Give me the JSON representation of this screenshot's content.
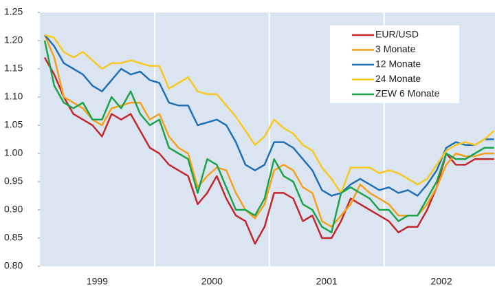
{
  "chart_data": {
    "type": "line",
    "x": [
      0.5,
      1.5,
      2.5,
      3.5,
      4.5,
      5.5,
      6.5,
      7.5,
      8.5,
      9.5,
      10.5,
      11.5,
      12.5,
      13.5,
      14.5,
      15.5,
      16.5,
      17.5,
      18.5,
      19.5,
      20.5,
      21.5,
      22.5,
      23.5,
      24.5,
      25.5,
      26.5,
      27.5,
      28.5,
      29.5,
      30.5,
      31.5,
      32.5,
      33.5,
      34.5,
      35.5,
      36.5,
      37.5,
      38.5,
      39.5,
      40.5,
      41.5,
      42.5,
      43.5,
      44.5,
      45.5,
      46.5,
      47.5
    ],
    "xlim": [
      0,
      47.6
    ],
    "xticks": [
      {
        "value": 6,
        "label": "1999"
      },
      {
        "value": 18,
        "label": "2000"
      },
      {
        "value": 30,
        "label": "2001"
      },
      {
        "value": 42,
        "label": "2002"
      }
    ],
    "x_gridlines": [
      12,
      24,
      36
    ],
    "ylim": [
      0.8,
      1.25
    ],
    "yticks": [
      {
        "value": 0.8,
        "label": "0.80"
      },
      0.85,
      {
        "value": 0.9,
        "label": "0.90"
      },
      0.95,
      {
        "value": 1.0,
        "label": "1.00"
      },
      1.05,
      {
        "value": 1.1,
        "label": "1.10"
      },
      1.15,
      {
        "value": 1.2,
        "label": "1.20"
      },
      1.25
    ],
    "legend": "top-right",
    "series": [
      {
        "name": "EUR/USD",
        "color": "#c1272d",
        "values": [
          1.17,
          1.14,
          1.1,
          1.07,
          1.06,
          1.05,
          1.03,
          1.07,
          1.06,
          1.07,
          1.04,
          1.01,
          1.0,
          0.98,
          0.97,
          0.96,
          0.91,
          0.93,
          0.96,
          0.92,
          0.89,
          0.88,
          0.84,
          0.87,
          0.93,
          0.93,
          0.92,
          0.88,
          0.89,
          0.85,
          0.85,
          0.88,
          0.92,
          0.91,
          0.9,
          0.89,
          0.88,
          0.86,
          0.87,
          0.87,
          0.9,
          0.94,
          1.0,
          0.98,
          0.98,
          0.99,
          0.99,
          0.99
        ]
      },
      {
        "name": "3 Monate",
        "color": "#f5a01a",
        "values": [
          1.21,
          1.17,
          1.1,
          1.09,
          1.08,
          1.06,
          1.05,
          1.08,
          1.085,
          1.09,
          1.09,
          1.06,
          1.07,
          1.03,
          1.01,
          1.0,
          0.94,
          0.96,
          0.975,
          0.97,
          0.93,
          0.9,
          0.885,
          0.91,
          0.97,
          0.98,
          0.97,
          0.94,
          0.93,
          0.88,
          0.87,
          0.89,
          0.91,
          0.945,
          0.93,
          0.92,
          0.91,
          0.89,
          0.89,
          0.89,
          0.91,
          0.94,
          0.98,
          1.0,
          0.995,
          0.995,
          1.0,
          1.0
        ]
      },
      {
        "name": "12 Monate",
        "color": "#1f6fb5",
        "values": [
          1.21,
          1.19,
          1.16,
          1.15,
          1.14,
          1.12,
          1.11,
          1.13,
          1.15,
          1.14,
          1.145,
          1.13,
          1.125,
          1.09,
          1.085,
          1.085,
          1.05,
          1.055,
          1.06,
          1.05,
          1.02,
          0.98,
          0.97,
          0.98,
          1.02,
          1.02,
          1.01,
          0.99,
          0.97,
          0.935,
          0.925,
          0.93,
          0.945,
          0.955,
          0.945,
          0.935,
          0.94,
          0.93,
          0.935,
          0.925,
          0.945,
          0.97,
          1.01,
          1.02,
          1.015,
          1.015,
          1.025,
          1.025
        ]
      },
      {
        "name": "24 Monate",
        "color": "#f7c81e",
        "values": [
          1.21,
          1.205,
          1.18,
          1.17,
          1.18,
          1.165,
          1.15,
          1.16,
          1.16,
          1.165,
          1.16,
          1.155,
          1.155,
          1.115,
          1.125,
          1.135,
          1.11,
          1.105,
          1.105,
          1.085,
          1.065,
          1.04,
          1.015,
          1.03,
          1.06,
          1.045,
          1.035,
          1.015,
          1.005,
          0.975,
          0.955,
          0.93,
          0.975,
          0.975,
          0.975,
          0.965,
          0.97,
          0.965,
          0.955,
          0.945,
          0.955,
          0.98,
          1.005,
          1.015,
          1.02,
          1.015,
          1.025,
          1.04
        ]
      },
      {
        "name": "ZEW 6 Monate",
        "color": "#1aa34a",
        "values": [
          1.2,
          1.12,
          1.09,
          1.08,
          1.09,
          1.06,
          1.06,
          1.1,
          1.08,
          1.11,
          1.07,
          1.05,
          1.06,
          1.01,
          1.0,
          0.99,
          0.93,
          0.99,
          0.98,
          0.94,
          0.9,
          0.9,
          0.89,
          0.92,
          0.99,
          0.96,
          0.95,
          0.91,
          0.9,
          0.87,
          0.86,
          0.93,
          0.94,
          0.93,
          0.92,
          0.9,
          0.9,
          0.88,
          0.89,
          0.89,
          0.92,
          0.95,
          1.0,
          0.99,
          0.99,
          1.0,
          1.01,
          1.01
        ]
      }
    ]
  }
}
